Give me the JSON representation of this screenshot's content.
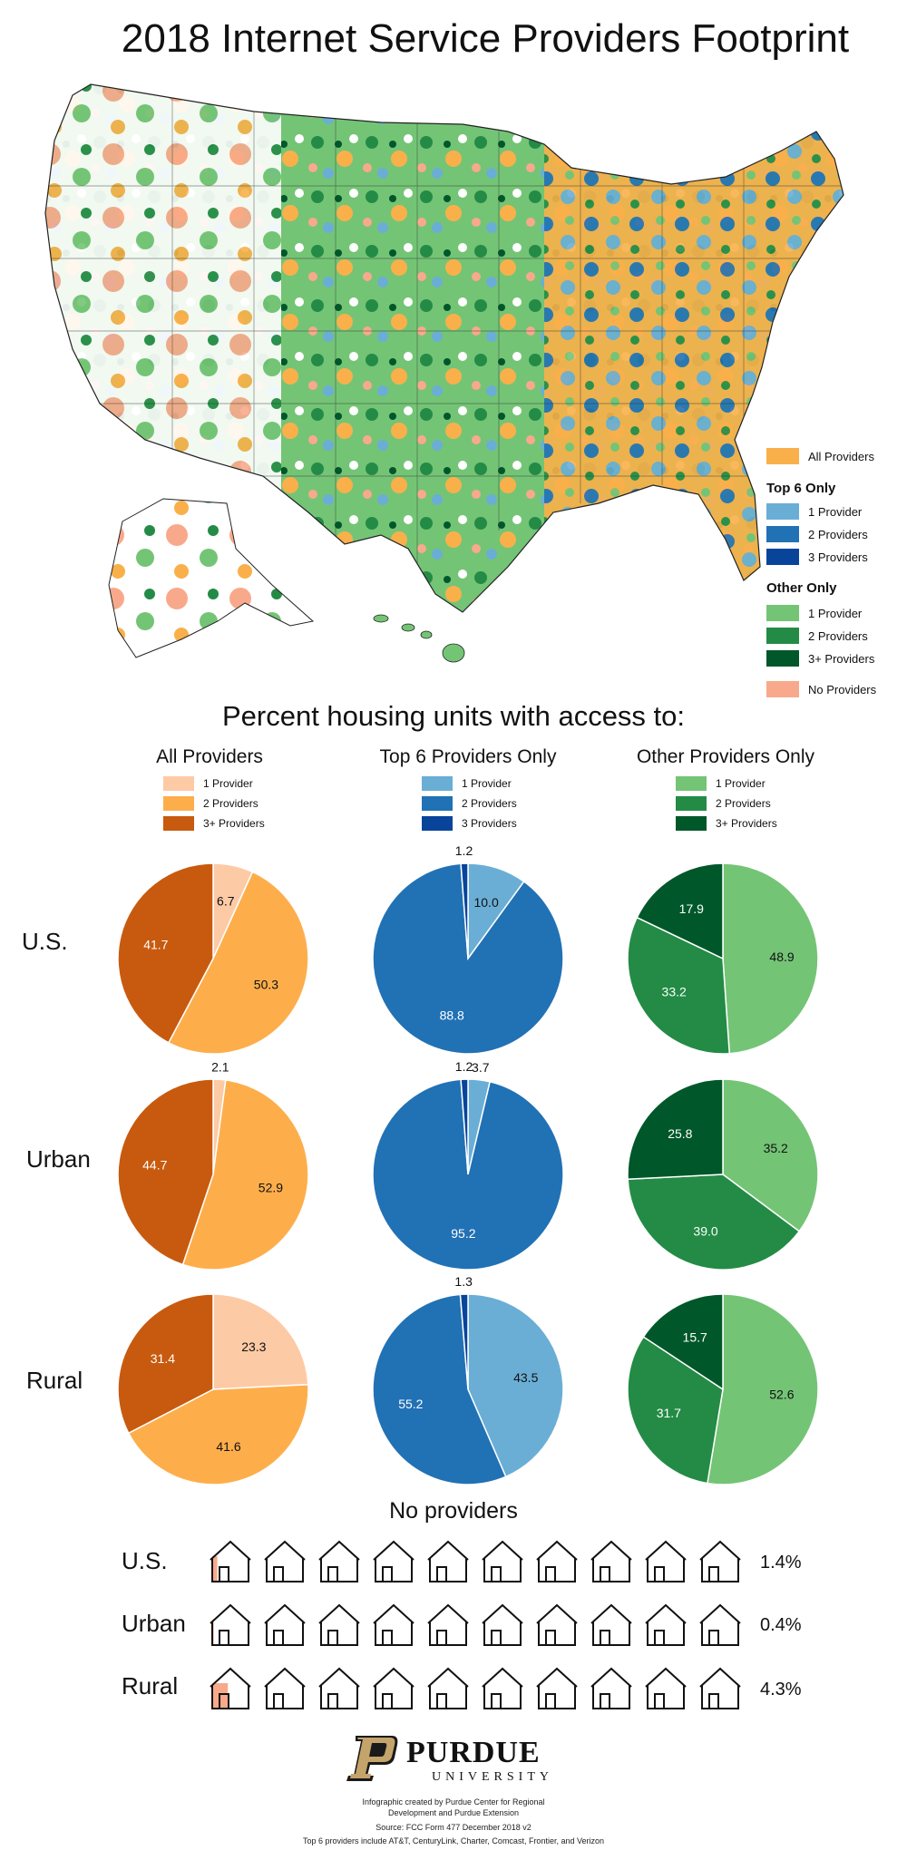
{
  "title": "2018 Internet Service Providers Footprint",
  "map_legend": {
    "all_label": "All Providers",
    "top6_heading": "Top 6 Only",
    "top6_items": [
      "1 Provider",
      "2 Providers",
      "3 Providers"
    ],
    "other_heading": "Other Only",
    "other_items": [
      "1 Provider",
      "2 Providers",
      "3+ Providers"
    ],
    "none_label": "No Providers",
    "colors": {
      "all": "#f9b04a",
      "top6": [
        "#6aaed6",
        "#2171b5",
        "#08449a"
      ],
      "other": [
        "#74c476",
        "#238b45",
        "#00572a"
      ],
      "none": "#f9a98b"
    }
  },
  "pie_section_title": "Percent housing units with access to:",
  "columns": [
    {
      "title": "All Providers",
      "legend": [
        "1 Provider",
        "2 Providers",
        "3+ Providers"
      ],
      "colors": [
        "#fdcaa6",
        "#fdae4b",
        "#c85a0f"
      ]
    },
    {
      "title": "Top 6 Providers Only",
      "legend": [
        "1 Provider",
        "2 Providers",
        "3 Providers"
      ],
      "colors": [
        "#6aaed6",
        "#2171b5",
        "#08449a"
      ]
    },
    {
      "title": "Other Providers Only",
      "legend": [
        "1 Provider",
        "2 Providers",
        "3+ Providers"
      ],
      "colors": [
        "#74c476",
        "#238b45",
        "#00572a"
      ]
    }
  ],
  "row_labels": [
    "U.S.",
    "Urban",
    "Rural"
  ],
  "chart_data": {
    "type": "pie",
    "slice_order": [
      "1",
      "2",
      "3+"
    ],
    "pies": [
      {
        "row": "U.S.",
        "column": "All Providers",
        "values": [
          6.7,
          50.3,
          41.7
        ],
        "labels": [
          "6.7",
          "50.3",
          "41.7"
        ]
      },
      {
        "row": "U.S.",
        "column": "Top 6 Providers Only",
        "values": [
          10.0,
          88.8,
          1.2
        ],
        "labels": [
          "10.0",
          "88.8",
          "1.2"
        ]
      },
      {
        "row": "U.S.",
        "column": "Other Providers Only",
        "values": [
          48.9,
          33.2,
          17.9
        ],
        "labels": [
          "48.9",
          "33.2",
          "17.9"
        ]
      },
      {
        "row": "Urban",
        "column": "All Providers",
        "values": [
          2.1,
          52.9,
          44.7
        ],
        "labels": [
          "2.1",
          "52.9",
          "44.7"
        ]
      },
      {
        "row": "Urban",
        "column": "Top 6 Providers Only",
        "values": [
          3.7,
          95.2,
          1.2
        ],
        "labels": [
          "3.7",
          "95.2",
          "1.2"
        ]
      },
      {
        "row": "Urban",
        "column": "Other Providers Only",
        "values": [
          35.2,
          39.0,
          25.8
        ],
        "labels": [
          "35.2",
          "39.0",
          "25.8"
        ]
      },
      {
        "row": "Rural",
        "column": "All Providers",
        "values": [
          23.3,
          41.6,
          31.4
        ],
        "labels": [
          "23.3",
          "41.6",
          "31.4"
        ]
      },
      {
        "row": "Rural",
        "column": "Top 6 Providers Only",
        "values": [
          43.5,
          55.2,
          1.3
        ],
        "labels": [
          "43.5",
          "55.2",
          "1.3"
        ]
      },
      {
        "row": "Rural",
        "column": "Other Providers Only",
        "values": [
          52.6,
          31.7,
          15.7
        ],
        "labels": [
          "52.6",
          "31.7",
          "15.7"
        ]
      }
    ]
  },
  "no_providers": {
    "title": "No providers",
    "fill_color": "#f9a98b",
    "rows": [
      {
        "label": "U.S.",
        "value": 1.4,
        "text": "1.4%"
      },
      {
        "label": "Urban",
        "value": 0.4,
        "text": "0.4%"
      },
      {
        "label": "Rural",
        "value": 4.3,
        "text": "4.3%"
      }
    ]
  },
  "footer": {
    "logo_word1": "PURDUE",
    "logo_word2": "UNIVERSITY",
    "credit1": "Infographic created by Purdue Center for Regional",
    "credit2": "Development and Purdue Extension",
    "source": "Source: FCC Form 477 December 2018 v2",
    "note": "Top 6 providers include AT&T, CenturyLink, Charter, Comcast, Frontier, and Verizon"
  }
}
